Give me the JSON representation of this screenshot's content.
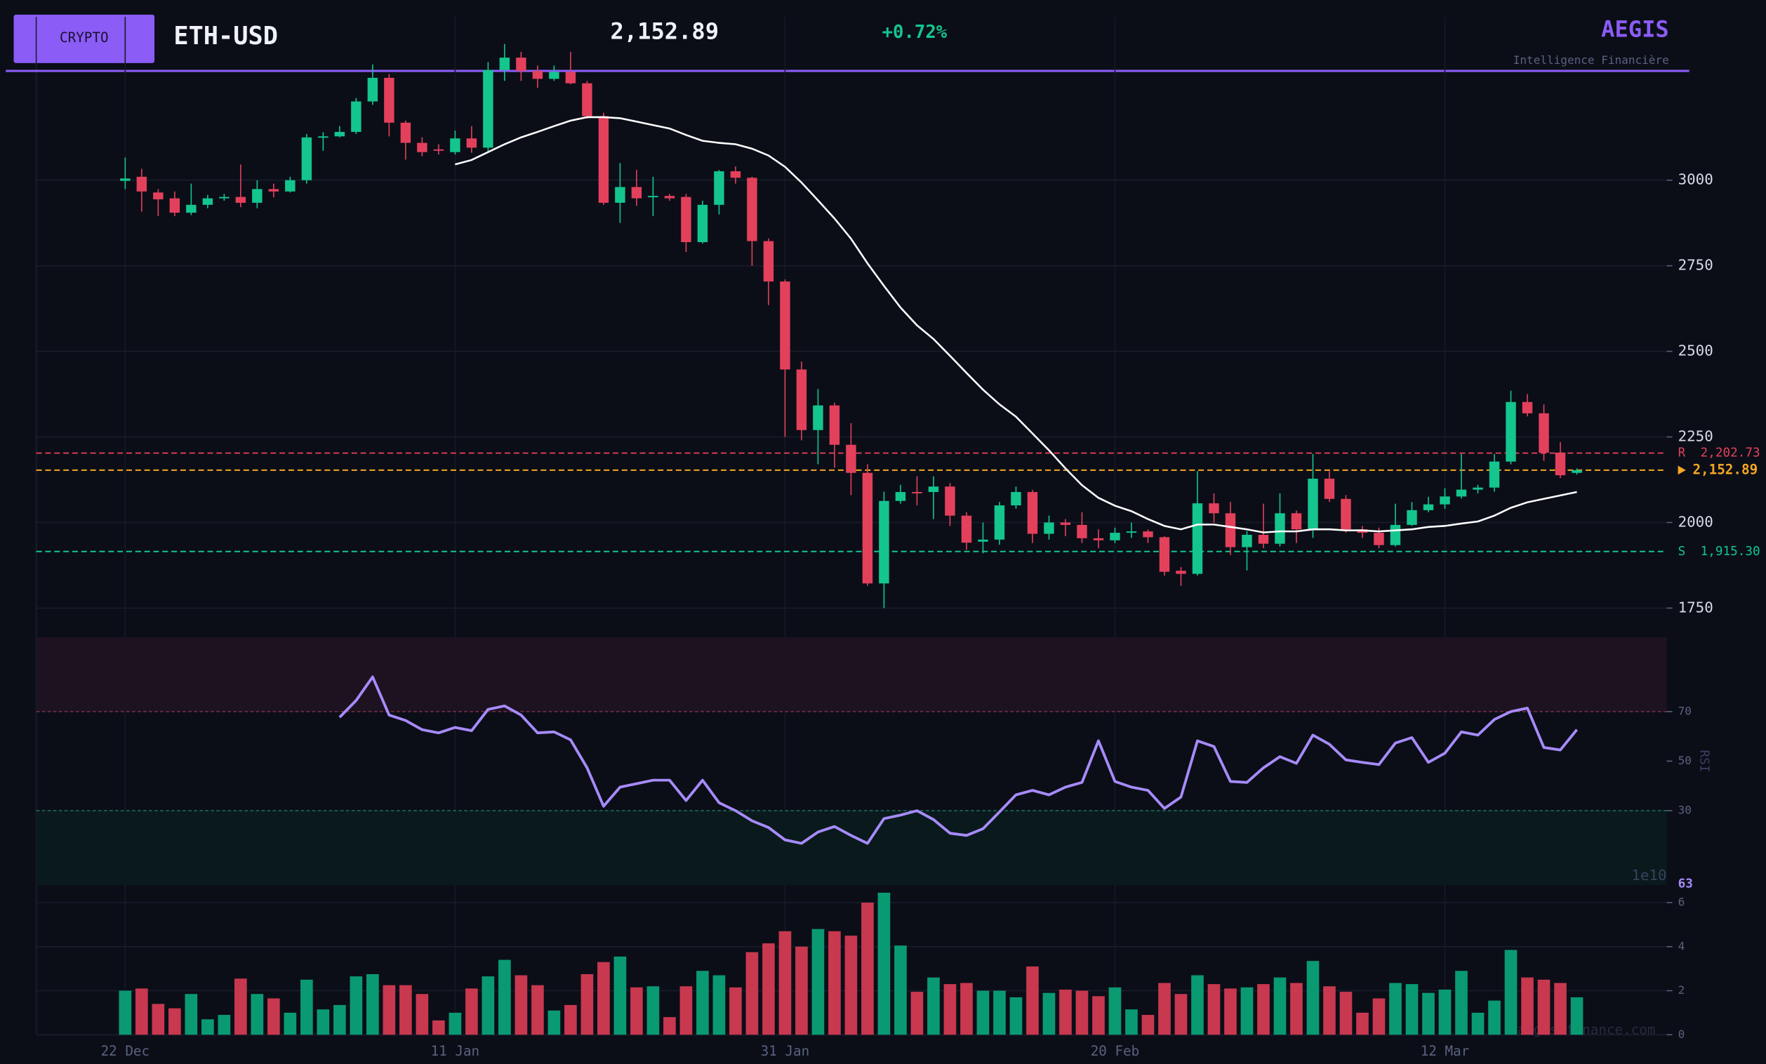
{
  "header": {
    "badge": "CRYPTO",
    "symbol": "ETH-USD",
    "price": "2,152.89",
    "change": "+0.72%",
    "brand": "AEGIS",
    "tagline": "Intelligence Financière"
  },
  "watermark": "aegis-finance.com",
  "chart_data": [
    {
      "type": "candlestick",
      "categories": [
        "22 Dec",
        null,
        null,
        null,
        null,
        null,
        null,
        null,
        null,
        null,
        null,
        null,
        null,
        null,
        null,
        null,
        null,
        null,
        null,
        null,
        "11 Jan",
        null,
        null,
        null,
        null,
        null,
        null,
        null,
        null,
        null,
        null,
        null,
        null,
        null,
        null,
        null,
        null,
        null,
        null,
        null,
        "31 Jan",
        null,
        null,
        null,
        null,
        null,
        null,
        null,
        null,
        null,
        null,
        null,
        null,
        null,
        null,
        null,
        null,
        null,
        null,
        null,
        "20 Feb",
        null,
        null,
        null,
        null,
        null,
        null,
        null,
        null,
        null,
        null,
        null,
        null,
        null,
        null,
        null,
        null,
        null,
        null,
        null,
        "12 Mar",
        null,
        null,
        null,
        null,
        null,
        null,
        null,
        null
      ],
      "open": [
        2998,
        3010,
        2964,
        2947,
        2905,
        2928,
        2947,
        2951,
        2934,
        2974,
        2967,
        3000,
        3125,
        3128,
        3141,
        3230,
        3299,
        3168,
        3109,
        3090,
        3082,
        3122,
        3095,
        3322,
        3358,
        3319,
        3296,
        3316,
        3283,
        3187,
        2934,
        2980,
        2951,
        2954,
        2951,
        2819,
        2928,
        3026,
        3007,
        2822,
        2704,
        2447,
        2270,
        2342,
        2227,
        2145,
        1822,
        2063,
        2089,
        2089,
        2105,
        2020,
        1944,
        1950,
        2050,
        2089,
        1967,
        2000,
        1993,
        1954,
        1948,
        1970,
        1974,
        1957,
        1859,
        1850,
        2056,
        2027,
        1928,
        1964,
        1938,
        2027,
        1980,
        2128,
        2069,
        1980,
        1970,
        1934,
        1993,
        2036,
        2053,
        2076,
        2096,
        2102,
        2178,
        2352,
        2319,
        2204,
        2145
      ],
      "high": [
        3066,
        3033,
        2974,
        2967,
        2990,
        2957,
        2960,
        3046,
        3000,
        2990,
        3010,
        3135,
        3140,
        3158,
        3240,
        3338,
        3310,
        3174,
        3125,
        3105,
        3145,
        3158,
        3345,
        3398,
        3375,
        3335,
        3335,
        3375,
        3290,
        3197,
        3050,
        3030,
        3010,
        2960,
        2960,
        2940,
        3030,
        3040,
        3010,
        2830,
        2710,
        2470,
        2390,
        2350,
        2290,
        2170,
        2090,
        2110,
        2135,
        2135,
        2115,
        2030,
        2000,
        2060,
        2105,
        2095,
        2020,
        2010,
        2030,
        1980,
        1985,
        2000,
        1980,
        1960,
        1870,
        2150,
        2085,
        2060,
        1975,
        2055,
        2085,
        2035,
        2200,
        2150,
        2080,
        1990,
        1985,
        2055,
        2060,
        2075,
        2100,
        2200,
        2110,
        2200,
        2385,
        2375,
        2345,
        2235,
        2158
      ],
      "low": [
        2974,
        2908,
        2895,
        2895,
        2898,
        2918,
        2940,
        2921,
        2918,
        2950,
        2964,
        2990,
        3086,
        3125,
        3135,
        3220,
        3128,
        3060,
        3070,
        3075,
        3075,
        3080,
        3085,
        3290,
        3290,
        3270,
        3290,
        3280,
        3180,
        2928,
        2875,
        2925,
        2895,
        2940,
        2790,
        2815,
        2900,
        2990,
        2750,
        2635,
        2250,
        2240,
        2170,
        2160,
        2080,
        1815,
        1750,
        2055,
        2050,
        2010,
        1990,
        1920,
        1910,
        1935,
        2040,
        1940,
        1950,
        1960,
        1940,
        1925,
        1940,
        1955,
        1940,
        1845,
        1815,
        1845,
        2000,
        1905,
        1860,
        1925,
        1930,
        1940,
        1955,
        2060,
        1970,
        1955,
        1925,
        1930,
        1990,
        2030,
        2040,
        2070,
        2085,
        2090,
        2170,
        2310,
        2180,
        2130,
        2140
      ],
      "close": [
        3005,
        2967,
        2944,
        2905,
        2928,
        2947,
        2951,
        2934,
        2974,
        2967,
        3000,
        3125,
        3128,
        3141,
        3230,
        3299,
        3168,
        3109,
        3082,
        3086,
        3122,
        3095,
        3322,
        3358,
        3319,
        3296,
        3316,
        3283,
        3187,
        2934,
        2980,
        2947,
        2954,
        2947,
        2819,
        2928,
        3026,
        3007,
        2822,
        2704,
        2447,
        2270,
        2342,
        2227,
        2145,
        1822,
        2063,
        2089,
        2086,
        2105,
        2020,
        1941,
        1950,
        2050,
        2089,
        1967,
        2000,
        1993,
        1954,
        1948,
        1970,
        1974,
        1957,
        1856,
        1850,
        2056,
        2027,
        1928,
        1964,
        1938,
        2027,
        1980,
        2128,
        2069,
        1980,
        1970,
        1934,
        1993,
        2036,
        2053,
        2076,
        2096,
        2102,
        2178,
        2352,
        2319,
        2204,
        2138,
        2152.89
      ],
      "up_color": "#14c58e",
      "down_color": "#e3405c",
      "ma": {
        "color": "#ffffff",
        "values": [
          null,
          null,
          null,
          null,
          null,
          null,
          null,
          null,
          null,
          null,
          null,
          null,
          null,
          null,
          null,
          null,
          null,
          null,
          null,
          null,
          3046,
          3059,
          3082,
          3105,
          3125,
          3141,
          3158,
          3174,
          3184,
          3184,
          3181,
          3171,
          3161,
          3151,
          3132,
          3115,
          3109,
          3105,
          3092,
          3072,
          3039,
          2993,
          2941,
          2888,
          2829,
          2757,
          2691,
          2628,
          2576,
          2536,
          2487,
          2437,
          2388,
          2345,
          2309,
          2260,
          2211,
          2158,
          2109,
          2072,
          2049,
          2033,
          2010,
          1990,
          1980,
          1994,
          1994,
          1987,
          1980,
          1971,
          1974,
          1974,
          1980,
          1980,
          1977,
          1977,
          1974,
          1977,
          1980,
          1987,
          1990,
          1997,
          2003,
          2020,
          2043,
          2059,
          2069,
          2079,
          2089
        ]
      },
      "levels": [
        {
          "name": "R",
          "value": 2202.73,
          "label": "2,202.73",
          "color": "#e3405c"
        },
        {
          "value": 2152.89,
          "label": "2,152.89",
          "color": "#f5a623"
        },
        {
          "name": "S",
          "value": 1915.3,
          "label": "1,915.30",
          "color": "#14c58e"
        }
      ],
      "ylim": [
        1668,
        3477
      ],
      "yticks": [
        1750,
        2000,
        2250,
        2500,
        2750,
        3000
      ],
      "grid": true
    },
    {
      "type": "line",
      "ylabel": "RSI",
      "color": "#a78bfa",
      "values": [
        null,
        null,
        null,
        null,
        null,
        null,
        null,
        null,
        null,
        null,
        null,
        null,
        null,
        67.7,
        74.5,
        84,
        68.6,
        66.4,
        62.7,
        61.4,
        63.6,
        62.3,
        70.9,
        72.3,
        68.6,
        61.4,
        61.8,
        58.6,
        47.3,
        31.8,
        39.5,
        40.9,
        42.3,
        42.3,
        34.1,
        42.3,
        33.2,
        30,
        25.9,
        23.2,
        18.2,
        16.8,
        21.4,
        23.6,
        20,
        16.8,
        26.8,
        28.2,
        30,
        26.4,
        20.9,
        20,
        22.7,
        29.5,
        36.4,
        38.2,
        36.4,
        39.5,
        41.4,
        58.2,
        41.8,
        39.5,
        38.2,
        30.9,
        35.5,
        58.2,
        55.9,
        41.8,
        41.4,
        47.3,
        51.8,
        49.1,
        60.5,
        56.8,
        50.5,
        49.5,
        48.6,
        57.3,
        59.5,
        49.5,
        53.2,
        61.8,
        60.5,
        66.8,
        70,
        71.4,
        55.5,
        54.5,
        62.7
      ],
      "last_label": "63",
      "overbought": 70,
      "oversold": 30,
      "ylim": [
        0,
        100
      ],
      "yticks": [
        30,
        50,
        70
      ]
    },
    {
      "type": "bar",
      "scale_label": "1e10",
      "up_color": "#0a9a72",
      "down_color": "#c8384f",
      "values": [
        2.0,
        2.1,
        1.4,
        1.2,
        1.85,
        0.7,
        0.9,
        2.55,
        1.85,
        1.65,
        1.0,
        2.5,
        1.15,
        1.35,
        2.65,
        2.75,
        2.25,
        2.25,
        1.85,
        0.65,
        1.0,
        2.1,
        2.65,
        3.4,
        2.7,
        2.25,
        1.1,
        1.35,
        2.75,
        3.3,
        3.55,
        2.15,
        2.2,
        0.8,
        2.2,
        2.9,
        2.7,
        2.15,
        3.75,
        4.15,
        4.7,
        4.0,
        4.8,
        4.7,
        4.5,
        6.0,
        6.45,
        4.05,
        1.95,
        2.6,
        2.3,
        2.35,
        2.0,
        2.0,
        1.7,
        3.1,
        1.9,
        2.05,
        2.0,
        1.75,
        2.15,
        1.15,
        0.9,
        2.35,
        1.85,
        2.7,
        2.3,
        2.1,
        2.15,
        2.3,
        2.6,
        2.35,
        3.35,
        2.2,
        1.95,
        1.0,
        1.65,
        2.35,
        2.3,
        1.9,
        2.05,
        2.9,
        1.0,
        1.55,
        3.85,
        2.6,
        2.5,
        2.35,
        1.7
      ],
      "ylim": [
        0,
        6.8
      ],
      "yticks": [
        0,
        2,
        4,
        6
      ]
    }
  ]
}
